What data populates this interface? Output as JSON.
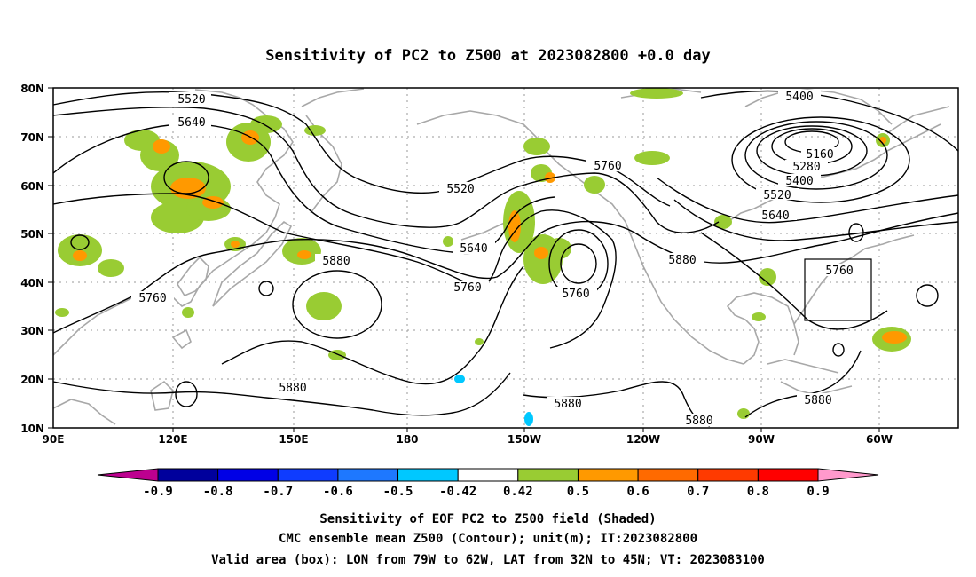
{
  "title": "Sensitivity of PC2 to Z500 at 2023082800 +0.0 day",
  "lat_labels": [
    "80N",
    "70N",
    "60N",
    "50N",
    "40N",
    "30N",
    "20N",
    "10N"
  ],
  "lon_labels": [
    "90E",
    "120E",
    "150E",
    "180",
    "150W",
    "120W",
    "90W",
    "60W"
  ],
  "contour_labels": [
    "5520",
    "5640",
    "5520",
    "5640",
    "5760",
    "5760",
    "5880",
    "5760",
    "5880",
    "5400",
    "5160",
    "5280",
    "5400",
    "5520",
    "5640",
    "5760",
    "5880",
    "5880",
    "5880",
    "5880"
  ],
  "colorbar": {
    "ticks": [
      "-0.9",
      "-0.8",
      "-0.7",
      "-0.6",
      "-0.5",
      "-0.42",
      "0.42",
      "0.5",
      "0.6",
      "0.7",
      "0.8",
      "0.9"
    ],
    "colors": [
      "#bd008f",
      "#00009c",
      "#0000e6",
      "#0f3cff",
      "#1e78ff",
      "#00c8ff",
      "#ffffff",
      "#99cc33",
      "#ff9900",
      "#ff6a00",
      "#ff3a00",
      "#ff0000",
      "#ff99cc"
    ]
  },
  "captions": [
    "Sensitivity of EOF PC2 to Z500 field (Shaded)",
    "CMC ensemble mean Z500 (Contour); unit(m); IT:2023082800",
    "Valid area (box): LON from 79W to 62W, LAT from 32N to 45N; VT: 2023083100"
  ]
}
